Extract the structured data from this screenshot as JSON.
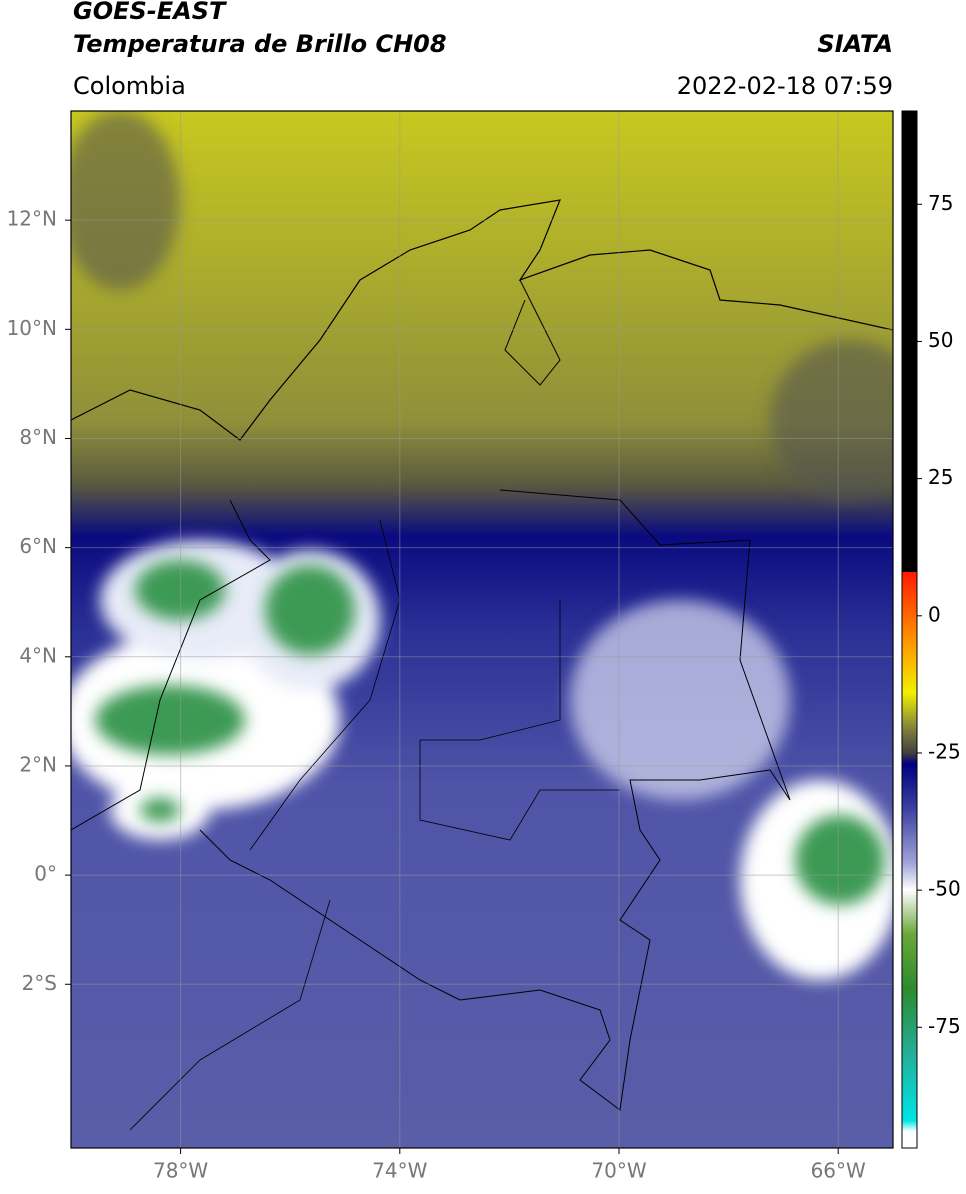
{
  "header": {
    "title_line1": "GOES-EAST",
    "title_line2": "Temperatura de Brillo CH08",
    "source": "SIATA",
    "region": "Colombia",
    "datetime": "2022-02-18 07:59"
  },
  "map": {
    "xlim": [
      -80,
      -65
    ],
    "ylim": [
      -5,
      14
    ],
    "grid": true,
    "xticks": [
      {
        "value": -78,
        "label": "78°W"
      },
      {
        "value": -74,
        "label": "74°W"
      },
      {
        "value": -70,
        "label": "70°W"
      },
      {
        "value": -66,
        "label": "66°W"
      }
    ],
    "yticks": [
      {
        "value": 12,
        "label": "12°N"
      },
      {
        "value": 10,
        "label": "10°N"
      },
      {
        "value": 8,
        "label": "8°N"
      },
      {
        "value": 6,
        "label": "6°N"
      },
      {
        "value": 4,
        "label": "4°N"
      },
      {
        "value": 2,
        "label": "2°N"
      },
      {
        "value": 0,
        "label": "0°"
      },
      {
        "value": -2,
        "label": "2°S"
      }
    ]
  },
  "colorbar": {
    "clim": [
      -97,
      92
    ],
    "ticks": [
      75,
      50,
      25,
      0,
      -25,
      -50,
      -75
    ],
    "colormap": [
      {
        "value": 92,
        "color": "#000000"
      },
      {
        "value": 8,
        "color": "#000000"
      },
      {
        "value": 8,
        "color": "#ff1a00"
      },
      {
        "value": -5,
        "color": "#ff9900"
      },
      {
        "value": -14,
        "color": "#f2f000"
      },
      {
        "value": -20,
        "color": "#8a8a3a"
      },
      {
        "value": -25,
        "color": "#404040"
      },
      {
        "value": -27,
        "color": "#000080"
      },
      {
        "value": -35,
        "color": "#3a3fa0"
      },
      {
        "value": -45,
        "color": "#a0a4d8"
      },
      {
        "value": -50,
        "color": "#ffffff"
      },
      {
        "value": -58,
        "color": "#6aa83a"
      },
      {
        "value": -68,
        "color": "#2e8a2e"
      },
      {
        "value": -80,
        "color": "#22b09a"
      },
      {
        "value": -92,
        "color": "#00e5e5"
      },
      {
        "value": -94,
        "color": "#ffffff"
      },
      {
        "value": -97,
        "color": "#ffffff"
      }
    ]
  }
}
